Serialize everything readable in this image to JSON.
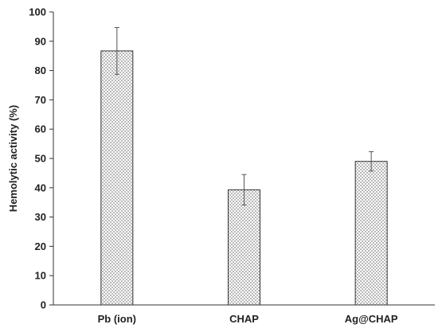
{
  "chart_data": {
    "type": "bar",
    "title": "",
    "xlabel": "",
    "ylabel": "Hemolytic activity (%)",
    "ylim": [
      0,
      100
    ],
    "yticks": [
      0,
      10,
      20,
      30,
      40,
      50,
      60,
      70,
      80,
      90,
      100
    ],
    "categories": [
      "Pb (ion)",
      "CHAP",
      "Ag@CHAP"
    ],
    "values": [
      86.7,
      39.3,
      49.0
    ],
    "errors": [
      8.0,
      5.2,
      3.3
    ],
    "grid": false,
    "legend": "none",
    "bar_pattern": "checkered-gray",
    "colors": {
      "bar_fill": "#c8c8c8",
      "bar_outline": "#333333",
      "axis": "#333333",
      "error_bar": "#555555"
    }
  }
}
